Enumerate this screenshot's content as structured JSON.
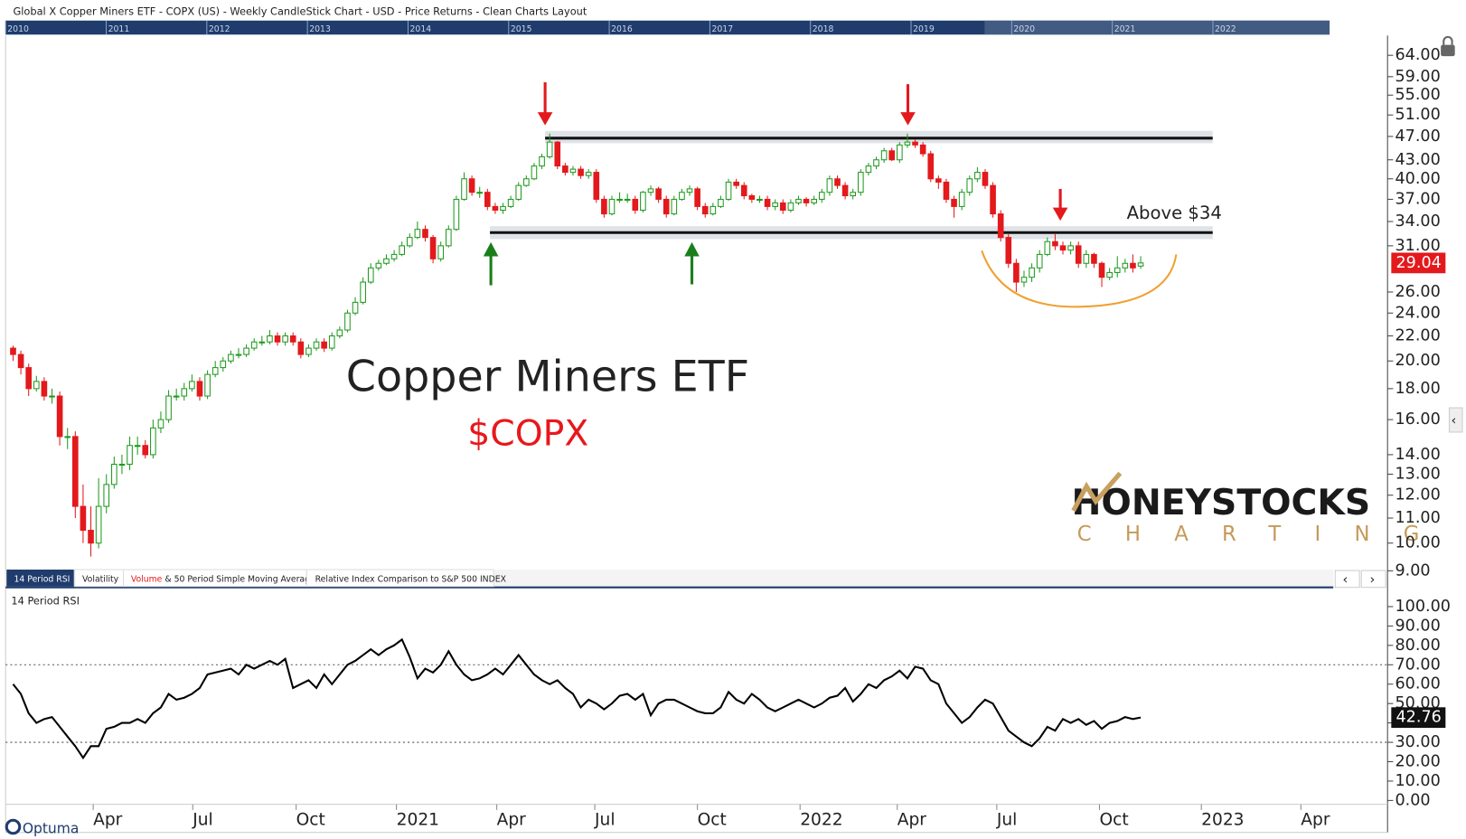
{
  "header": "Global X Copper Miners ETF - COPX (US) - Weekly CandleStick Chart - USD - Price Returns - Clean Charts Layout",
  "overview_years": [
    "2010",
    "2011",
    "2012",
    "2013",
    "2014",
    "2015",
    "2016",
    "2017",
    "2018",
    "2019",
    "2020",
    "2021",
    "2022"
  ],
  "tabs": [
    "14 Period RSI",
    "Volatility",
    {
      "highlight": "Volume",
      "rest": "& 50 Period Simple Moving Average"
    },
    "Relative Index Comparison to S&P 500 INDEX"
  ],
  "logo": {
    "name": "HONEYSTOCKS",
    "tagline": "CHARTING"
  },
  "brand": "Optuma",
  "chart_data": [
    {
      "type": "candlestick",
      "log_scale": true,
      "up_color": "#1d9a1d",
      "down_color": "#e3191c",
      "annotations": [
        "Copper Miners ETF",
        "$COPX",
        "Above $34"
      ],
      "levels": [
        {
          "low": 45.8,
          "high": 48,
          "line": 46.7
        },
        {
          "low": 31.8,
          "high": 33.4,
          "line": 32.6
        }
      ],
      "ylim": [
        8.45,
        69
      ],
      "yticks": [
        {
          "value": 9,
          "label": "9.00"
        },
        {
          "value": 10,
          "label": "10.00"
        },
        {
          "value": 11,
          "label": "11.00"
        },
        {
          "value": 12,
          "label": "12.00"
        },
        {
          "value": 13,
          "label": "13.00"
        },
        {
          "value": 14,
          "label": "14.00"
        },
        {
          "value": 16,
          "label": "16.00"
        },
        {
          "value": 18,
          "label": "18.00"
        },
        {
          "value": 20,
          "label": "20.00"
        },
        {
          "value": 22,
          "label": "22.00"
        },
        {
          "value": 24,
          "label": "24.00"
        },
        {
          "value": 26,
          "label": "26.00"
        },
        {
          "value": 31,
          "label": "31.00"
        },
        {
          "value": 34,
          "label": "34.00"
        },
        {
          "value": 37,
          "label": "37.00"
        },
        {
          "value": 40,
          "label": "40.00"
        },
        {
          "value": 43,
          "label": "43.00"
        },
        {
          "value": 47,
          "label": "47.00"
        },
        {
          "value": 51,
          "label": "51.00"
        },
        {
          "value": 55,
          "label": "55.00"
        },
        {
          "value": 59,
          "label": "59.00"
        },
        {
          "value": 64,
          "label": "64.00"
        }
      ],
      "categories": [
        null,
        null,
        null,
        null,
        null,
        null,
        null,
        null,
        null,
        null,
        null,
        null,
        null,
        null,
        null,
        null,
        null,
        null,
        null,
        null,
        null,
        null,
        null,
        null,
        null,
        null,
        null,
        null,
        null,
        null,
        null,
        null,
        null,
        null,
        null,
        null,
        null,
        null,
        null,
        null,
        null,
        null,
        null,
        null,
        null,
        null,
        null,
        null,
        null,
        null,
        null,
        null,
        null,
        null,
        null,
        null,
        null,
        null,
        null,
        null,
        null,
        null,
        null,
        null,
        null,
        null,
        null,
        null,
        null,
        null,
        null,
        null,
        null,
        null,
        null,
        null,
        null,
        null,
        null,
        null,
        null,
        null,
        null,
        null,
        null,
        null,
        null,
        null,
        null,
        null,
        null,
        null,
        null,
        null,
        null,
        null,
        null,
        null,
        null,
        null,
        null,
        null,
        null,
        null,
        null,
        null,
        null,
        null,
        null,
        null,
        null,
        null,
        null,
        null,
        null,
        null,
        null,
        null,
        null,
        null,
        null,
        null,
        null,
        null,
        null,
        null,
        null,
        null,
        null,
        null,
        null,
        null,
        null,
        null,
        null,
        null,
        null,
        null,
        null,
        null,
        null,
        null,
        null,
        null,
        null,
        null
      ],
      "open": [
        21,
        20.5,
        19.5,
        18,
        18.5,
        17.5,
        17.5,
        15,
        15,
        11.5,
        10.5,
        10,
        11.5,
        12.5,
        13.5,
        13.5,
        14.5,
        14.5,
        14,
        15.5,
        16,
        17.5,
        17.5,
        18,
        18.5,
        17.5,
        19,
        19.5,
        20,
        20.5,
        20.5,
        21,
        21.5,
        21.5,
        22,
        21.5,
        22,
        21.5,
        20.5,
        21,
        21.5,
        21,
        22,
        22.5,
        24,
        25,
        27,
        28.5,
        29,
        29.5,
        30,
        31,
        32,
        33,
        32,
        29.5,
        31,
        33,
        37,
        40,
        38,
        38,
        36,
        35.5,
        36,
        37,
        39,
        40,
        42,
        43.5,
        46,
        42,
        41,
        41.5,
        40.5,
        41,
        37,
        35,
        37,
        37,
        37,
        35.5,
        38,
        38.5,
        37,
        35,
        37,
        38,
        38.5,
        36,
        35,
        36,
        37,
        39.5,
        39,
        37.5,
        37,
        37,
        36,
        36.5,
        35.5,
        36.5,
        37,
        36.5,
        37,
        38,
        40,
        39,
        37.5,
        38,
        41,
        42,
        43,
        44.5,
        43,
        45.5,
        46,
        45.5,
        44,
        40,
        39.5,
        37,
        36,
        38,
        40,
        41,
        39,
        35,
        32,
        29,
        27,
        27.5,
        28.5,
        30,
        31.5,
        31,
        30.5,
        31,
        29,
        30,
        29,
        27.5,
        28,
        28.5,
        29,
        28.7
      ],
      "high": [
        21.2,
        20.8,
        19.8,
        18.9,
        18.8,
        18,
        17.8,
        15.5,
        15.3,
        12.5,
        11.5,
        12.8,
        13,
        13.9,
        14,
        15,
        15,
        14.8,
        16,
        16.5,
        17.9,
        18,
        18.4,
        19,
        18.8,
        19.3,
        20,
        20.3,
        20.8,
        21,
        21.3,
        21.8,
        22,
        22.5,
        22.3,
        22.3,
        22.3,
        21.8,
        21.3,
        21.8,
        21.8,
        22.3,
        22.8,
        24.3,
        25.5,
        27.5,
        29,
        29.4,
        30,
        30.5,
        31.5,
        32.5,
        34,
        33.5,
        32.3,
        31.5,
        33.5,
        37.5,
        41,
        40.5,
        38.8,
        38.5,
        36.5,
        36.5,
        37.5,
        39.5,
        40.5,
        42.5,
        44,
        47.5,
        46.2,
        42.5,
        42,
        42,
        41.5,
        41.5,
        37.5,
        37.5,
        38,
        37.8,
        37.5,
        38.2,
        39,
        38.8,
        37.5,
        37.5,
        38.5,
        39,
        38.8,
        36.5,
        36.5,
        37.5,
        40,
        40,
        39.5,
        37.8,
        37.5,
        37.5,
        37,
        37,
        37,
        37.5,
        37.3,
        37.5,
        38.5,
        40.5,
        40.5,
        39.5,
        38.5,
        41.5,
        42.5,
        43.5,
        45,
        45,
        46,
        47.5,
        46.5,
        46,
        44.5,
        40.5,
        40,
        37.5,
        38.5,
        40.5,
        41.8,
        41.5,
        39.5,
        35.5,
        32.5,
        29.5,
        28.2,
        29,
        30.5,
        32,
        32.5,
        31.5,
        31.5,
        31.5,
        30.5,
        30.2,
        29.2,
        28.5,
        29.8,
        29.5,
        30,
        29.8
      ],
      "low": [
        20,
        19,
        17.5,
        17.8,
        17.2,
        17,
        14.5,
        14.3,
        11,
        10,
        9.5,
        9.8,
        11.2,
        12.3,
        13,
        13.2,
        14,
        13.8,
        13.8,
        15.2,
        15.8,
        17.2,
        17.2,
        17.8,
        17.2,
        17.3,
        18.8,
        19.2,
        19.8,
        20.2,
        20.3,
        20.8,
        21.2,
        21.3,
        21.2,
        21.2,
        21.2,
        20.2,
        20.3,
        20.8,
        20.7,
        20.8,
        21.8,
        22.3,
        23.8,
        24.8,
        26.8,
        28.2,
        28.8,
        29.2,
        29.8,
        30.8,
        31.8,
        31.5,
        29,
        29.2,
        30.8,
        32.8,
        36.8,
        37.5,
        37.2,
        35.5,
        35,
        35,
        35.8,
        36.8,
        38.8,
        39.8,
        41.5,
        43.2,
        41.5,
        40.5,
        40.5,
        40,
        40,
        36.5,
        34.5,
        34.8,
        36.5,
        36.5,
        35,
        35.2,
        37.5,
        36.5,
        34.5,
        34.8,
        36.8,
        37.5,
        35.5,
        34.5,
        34.8,
        35.8,
        36.8,
        38.5,
        37,
        36.5,
        36.5,
        35.5,
        35.5,
        35,
        35.2,
        36.2,
        36,
        36.2,
        36.5,
        37.5,
        38.5,
        37,
        37,
        37.5,
        40.5,
        41.5,
        42.5,
        42.8,
        42.5,
        45,
        45,
        43.5,
        39.5,
        38.5,
        36.5,
        34.5,
        35.5,
        37.5,
        39.5,
        38.5,
        34.5,
        31.5,
        28.5,
        26,
        26.5,
        27,
        28,
        29.8,
        30.5,
        30,
        30,
        28.5,
        28.5,
        28.5,
        26.5,
        27.2,
        27.5,
        28,
        28,
        28.4
      ],
      "close": [
        20.5,
        19.5,
        18,
        18.5,
        17.5,
        17.5,
        15,
        15,
        11.5,
        10.5,
        10,
        11.5,
        12.5,
        13.5,
        13.5,
        14.5,
        14.5,
        14,
        15.5,
        16,
        17.5,
        17.5,
        18,
        18.5,
        17.5,
        19,
        19.5,
        20,
        20.5,
        20.5,
        21,
        21.5,
        21.5,
        22,
        21.5,
        22,
        21.5,
        20.5,
        21,
        21.5,
        21,
        22,
        22.5,
        24,
        25,
        27,
        28.5,
        29,
        29.5,
        30,
        31,
        32,
        33,
        32,
        29.5,
        31,
        33,
        37,
        40,
        38,
        38,
        36,
        35.5,
        36,
        37,
        39,
        40,
        42,
        43.5,
        46,
        42,
        41,
        41.5,
        40.5,
        41,
        37,
        35,
        37,
        37,
        37,
        35.5,
        38,
        38.5,
        37,
        35,
        37,
        38,
        38.5,
        36,
        35,
        36,
        37,
        39.5,
        39,
        37.5,
        37,
        37,
        36,
        36.5,
        35.5,
        36.5,
        37,
        36.5,
        37,
        38,
        40,
        39,
        37.5,
        38,
        41,
        42,
        43,
        44.5,
        43,
        45.5,
        46,
        45.5,
        44,
        40,
        39.5,
        37,
        36,
        38,
        40,
        41,
        39,
        35,
        32,
        29,
        27,
        27.5,
        28.5,
        30,
        31.5,
        31,
        30.5,
        31,
        29,
        30,
        29,
        27.5,
        28,
        28.5,
        29,
        28.5,
        29.04
      ]
    },
    {
      "type": "line",
      "title": "14 Period RSI",
      "color": "#000000",
      "ylim": [
        -2,
        108
      ],
      "yticks": [
        {
          "value": 0,
          "label": "0.00"
        },
        {
          "value": 10,
          "label": "10.00"
        },
        {
          "value": 20,
          "label": "20.00"
        },
        {
          "value": 30,
          "label": "30.00"
        },
        {
          "value": 40,
          "label": "40.00"
        },
        {
          "value": 50,
          "label": "50.00"
        },
        {
          "value": 60,
          "label": "60.00"
        },
        {
          "value": 70,
          "label": "70.00"
        },
        {
          "value": 80,
          "label": "80.00"
        },
        {
          "value": 90,
          "label": "90.00"
        },
        {
          "value": 100,
          "label": "100.00"
        }
      ],
      "levels": [
        70,
        30
      ],
      "xticks": [
        {
          "value": 10.3,
          "label": "Apr"
        },
        {
          "value": 23.1,
          "label": "Jul"
        },
        {
          "value": 36.4,
          "label": "Oct"
        },
        {
          "value": 49.3,
          "label": "2021"
        },
        {
          "value": 62.2,
          "label": "Apr"
        },
        {
          "value": 74.8,
          "label": "Jul"
        },
        {
          "value": 88,
          "label": "Oct"
        },
        {
          "value": 101.2,
          "label": "2022"
        },
        {
          "value": 113.7,
          "label": "Apr"
        },
        {
          "value": 126.5,
          "label": "Jul"
        },
        {
          "value": 139.7,
          "label": "Oct"
        },
        {
          "value": 152.8,
          "label": "2023"
        },
        {
          "value": 165.6,
          "label": "Apr"
        }
      ],
      "categories": [
        null,
        null,
        null,
        null,
        null,
        null,
        null,
        null,
        null,
        null,
        null,
        null,
        null,
        null,
        null,
        null,
        null,
        null,
        null,
        null,
        null,
        null,
        null,
        null,
        null,
        null,
        null,
        null,
        null,
        null,
        null,
        null,
        null,
        null,
        null,
        null,
        null,
        null,
        null,
        null,
        null,
        null,
        null,
        null,
        null,
        null,
        null,
        null,
        null,
        null,
        null,
        null,
        null,
        null,
        null,
        null,
        null,
        null,
        null,
        null,
        null,
        null,
        null,
        null,
        null,
        null,
        null,
        null,
        null,
        null,
        null,
        null,
        null,
        null,
        null,
        null,
        null,
        null,
        null,
        null,
        null,
        null,
        null,
        null,
        null,
        null,
        null,
        null,
        null,
        null,
        null,
        null,
        null,
        null,
        null,
        null,
        null,
        null,
        null,
        null,
        null,
        null,
        null,
        null,
        null,
        null,
        null,
        null,
        null,
        null,
        null,
        null,
        null,
        null,
        null,
        null,
        null,
        null,
        null,
        null,
        null,
        null,
        null,
        null,
        null,
        null,
        null,
        null,
        null,
        null,
        null,
        null,
        null,
        null,
        null,
        null,
        null,
        null,
        null,
        null,
        null,
        null,
        null,
        null,
        null,
        null
      ],
      "values": [
        60,
        55,
        45,
        40,
        42,
        43,
        38,
        33,
        28,
        22,
        28,
        28,
        37,
        38,
        40,
        40,
        42,
        40,
        45,
        48,
        55,
        52,
        53,
        55,
        58,
        65,
        66,
        67,
        68,
        65,
        70,
        68,
        70,
        72,
        70,
        73,
        58,
        60,
        62,
        58,
        65,
        60,
        65,
        70,
        72,
        75,
        78,
        75,
        78,
        80,
        83,
        74,
        63,
        68,
        66,
        70,
        77,
        70,
        65,
        62,
        63,
        65,
        68,
        65,
        70,
        75,
        70,
        65,
        62,
        60,
        62,
        58,
        55,
        48,
        52,
        50,
        47,
        50,
        54,
        55,
        52,
        55,
        44,
        50,
        52,
        52,
        50,
        48,
        46,
        45,
        45,
        48,
        56,
        52,
        50,
        55,
        52,
        48,
        46,
        48,
        50,
        52,
        50,
        48,
        50,
        53,
        54,
        58,
        51,
        55,
        60,
        58,
        62,
        64,
        67,
        63,
        69,
        68,
        62,
        60,
        50,
        45,
        40,
        43,
        48,
        52,
        50,
        43,
        36,
        33,
        30,
        28,
        32,
        38,
        36,
        42,
        40,
        42,
        39,
        41,
        37,
        40,
        41,
        43,
        42,
        42.76
      ]
    }
  ]
}
